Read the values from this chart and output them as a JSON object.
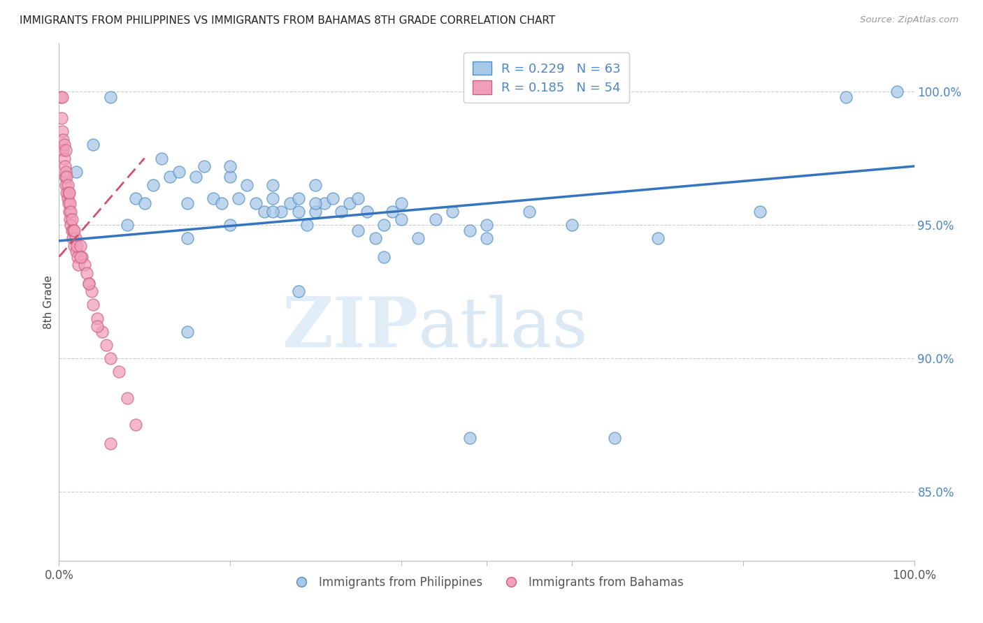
{
  "title": "IMMIGRANTS FROM PHILIPPINES VS IMMIGRANTS FROM BAHAMAS 8TH GRADE CORRELATION CHART",
  "source": "Source: ZipAtlas.com",
  "ylabel": "8th Grade",
  "yaxis_labels": [
    "100.0%",
    "95.0%",
    "90.0%",
    "85.0%"
  ],
  "yaxis_values": [
    1.0,
    0.95,
    0.9,
    0.85
  ],
  "xlim": [
    0.0,
    1.0
  ],
  "ylim": [
    0.824,
    1.018
  ],
  "watermark_zip": "ZIP",
  "watermark_atlas": "atlas",
  "legend_r1": "R = 0.229",
  "legend_n1": "N = 63",
  "legend_r2": "R = 0.185",
  "legend_n2": "N = 54",
  "color_blue": "#a8c8e8",
  "color_pink": "#f0a0b8",
  "color_blue_edge": "#5090c0",
  "color_pink_edge": "#d06080",
  "color_line_blue": "#3575c0",
  "color_line_pink": "#d05070",
  "color_axis_text": "#4a86c8",
  "blue_line_x0": 0.0,
  "blue_line_y0": 0.944,
  "blue_line_x1": 1.0,
  "blue_line_y1": 0.972,
  "pink_line_x0": 0.0,
  "pink_line_y0": 0.938,
  "pink_line_x1": 0.1,
  "pink_line_y1": 0.975,
  "blue_x": [
    0.02,
    0.04,
    0.06,
    0.09,
    0.11,
    0.12,
    0.13,
    0.14,
    0.15,
    0.16,
    0.17,
    0.18,
    0.19,
    0.2,
    0.2,
    0.21,
    0.22,
    0.23,
    0.24,
    0.25,
    0.25,
    0.26,
    0.27,
    0.28,
    0.28,
    0.29,
    0.3,
    0.3,
    0.31,
    0.32,
    0.33,
    0.34,
    0.35,
    0.36,
    0.37,
    0.38,
    0.39,
    0.4,
    0.42,
    0.44,
    0.46,
    0.48,
    0.5,
    0.55,
    0.08,
    0.1,
    0.15,
    0.2,
    0.25,
    0.3,
    0.35,
    0.4,
    0.5,
    0.6,
    0.7,
    0.82,
    0.92,
    0.98,
    0.15,
    0.28,
    0.38,
    0.48,
    0.65
  ],
  "blue_y": [
    0.97,
    0.98,
    0.998,
    0.96,
    0.965,
    0.975,
    0.968,
    0.97,
    0.958,
    0.968,
    0.972,
    0.96,
    0.958,
    0.968,
    0.972,
    0.96,
    0.965,
    0.958,
    0.955,
    0.96,
    0.965,
    0.955,
    0.958,
    0.96,
    0.955,
    0.95,
    0.955,
    0.965,
    0.958,
    0.96,
    0.955,
    0.958,
    0.96,
    0.955,
    0.945,
    0.95,
    0.955,
    0.958,
    0.945,
    0.952,
    0.955,
    0.948,
    0.95,
    0.955,
    0.95,
    0.958,
    0.945,
    0.95,
    0.955,
    0.958,
    0.948,
    0.952,
    0.945,
    0.95,
    0.945,
    0.955,
    0.998,
    1.0,
    0.91,
    0.925,
    0.938,
    0.87,
    0.87
  ],
  "pink_x": [
    0.002,
    0.003,
    0.004,
    0.005,
    0.005,
    0.006,
    0.006,
    0.007,
    0.007,
    0.008,
    0.008,
    0.009,
    0.009,
    0.01,
    0.01,
    0.011,
    0.011,
    0.012,
    0.013,
    0.013,
    0.014,
    0.014,
    0.015,
    0.015,
    0.016,
    0.017,
    0.018,
    0.019,
    0.02,
    0.021,
    0.022,
    0.023,
    0.025,
    0.027,
    0.03,
    0.032,
    0.035,
    0.038,
    0.04,
    0.045,
    0.05,
    0.055,
    0.06,
    0.07,
    0.08,
    0.09,
    0.004,
    0.008,
    0.012,
    0.018,
    0.025,
    0.035,
    0.045,
    0.06
  ],
  "pink_y": [
    0.998,
    0.99,
    0.985,
    0.982,
    0.978,
    0.975,
    0.98,
    0.972,
    0.968,
    0.965,
    0.97,
    0.962,
    0.968,
    0.96,
    0.965,
    0.958,
    0.962,
    0.955,
    0.952,
    0.958,
    0.95,
    0.955,
    0.948,
    0.952,
    0.945,
    0.948,
    0.942,
    0.945,
    0.94,
    0.942,
    0.938,
    0.935,
    0.942,
    0.938,
    0.935,
    0.932,
    0.928,
    0.925,
    0.92,
    0.915,
    0.91,
    0.905,
    0.9,
    0.895,
    0.885,
    0.875,
    0.998,
    0.978,
    0.962,
    0.948,
    0.938,
    0.928,
    0.912,
    0.868
  ]
}
